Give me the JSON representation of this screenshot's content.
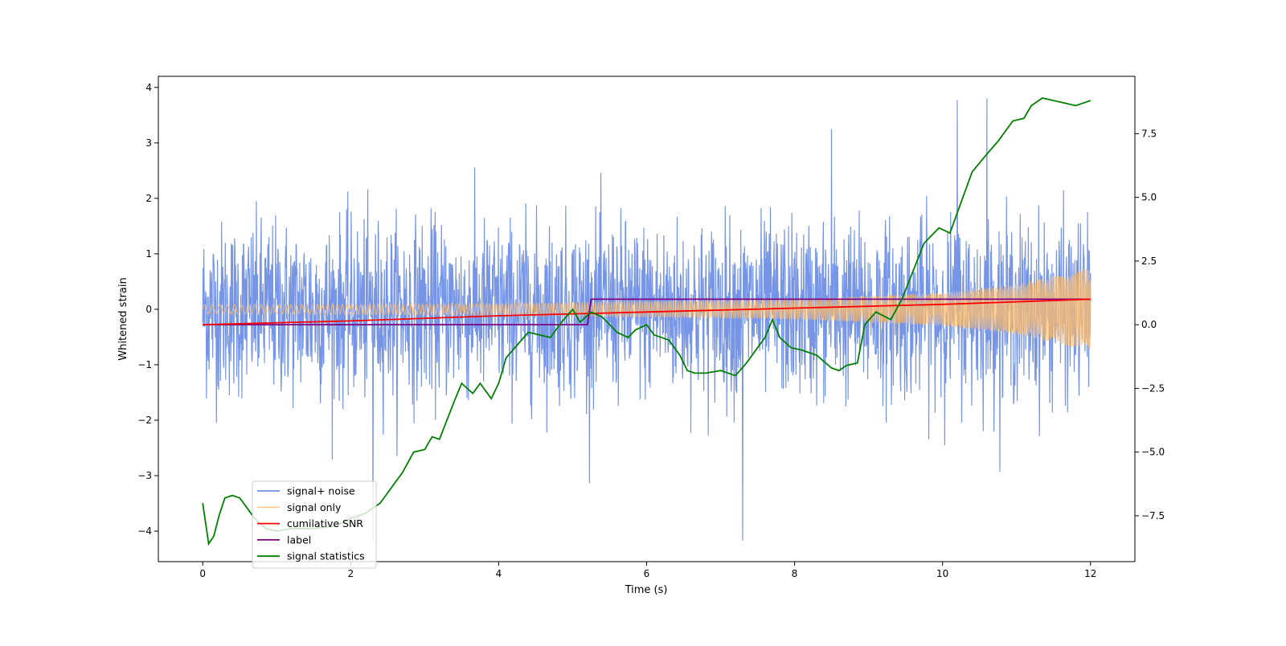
{
  "chart_data": {
    "type": "line",
    "title": "",
    "xlabel": "Time (s)",
    "ylabel": "Whitened strain",
    "y2label": "",
    "xlim": [
      -0.6,
      12.6
    ],
    "ylim": [
      -4.55,
      4.2
    ],
    "y2lim": [
      -9.3,
      9.75
    ],
    "xticks": [
      0,
      2,
      4,
      6,
      8,
      10,
      12
    ],
    "xtick_labels": [
      "0",
      "2",
      "4",
      "6",
      "8",
      "10",
      "12"
    ],
    "yticks": [
      4,
      3,
      2,
      1,
      0,
      -1,
      -2,
      -3,
      -4
    ],
    "ytick_labels": [
      "4",
      "3",
      "2",
      "1",
      "0",
      "−1",
      "−2",
      "−3",
      "−4"
    ],
    "y2ticks": [
      7.5,
      5.0,
      2.5,
      0.0,
      -2.5,
      -5.0,
      -7.5
    ],
    "y2tick_labels": [
      "7.5",
      "5.0",
      "2.5",
      "0.0",
      "−2.5",
      "−5.0",
      "−7.5"
    ],
    "grid": false,
    "legend_position": "lower-left",
    "series": [
      {
        "name": "signal+ noise",
        "axis": "left",
        "color": "#6f8fe6",
        "style": "dense noisy trace, approx. Gaussian with std ~0.8, peaks reaching +3.8 and -4.2",
        "x_range": [
          0,
          12
        ],
        "peaks": [
          [
            2.3,
            -4.2
          ],
          [
            7.3,
            -4.17
          ],
          [
            10.2,
            3.77
          ],
          [
            10.6,
            3.8
          ],
          [
            8.5,
            3.25
          ]
        ]
      },
      {
        "name": "signal only",
        "axis": "left",
        "color": "#ffbd6b",
        "style": "chirp oscillation, amplitude growing with time",
        "x_range": [
          0,
          12
        ],
        "amplitude_envelope": [
          [
            0,
            0.08
          ],
          [
            4,
            0.1
          ],
          [
            8,
            0.18
          ],
          [
            10,
            0.3
          ],
          [
            11,
            0.45
          ],
          [
            12,
            0.75
          ]
        ]
      },
      {
        "name": "cumilative SNR",
        "axis": "right",
        "color": "#ff0000",
        "points": [
          [
            0,
            0.0
          ],
          [
            2,
            0.15
          ],
          [
            4,
            0.35
          ],
          [
            6,
            0.5
          ],
          [
            8,
            0.65
          ],
          [
            10,
            0.8
          ],
          [
            11,
            0.9
          ],
          [
            12,
            1.0
          ]
        ]
      },
      {
        "name": "label",
        "axis": "right",
        "color": "#800080",
        "points": [
          [
            0,
            0
          ],
          [
            5.2,
            0
          ],
          [
            5.25,
            1
          ],
          [
            12,
            1
          ]
        ]
      },
      {
        "name": "signal statistics",
        "axis": "right",
        "color": "#008000",
        "points": [
          [
            0,
            -7.0
          ],
          [
            0.08,
            -8.6
          ],
          [
            0.15,
            -8.3
          ],
          [
            0.22,
            -7.5
          ],
          [
            0.3,
            -6.8
          ],
          [
            0.4,
            -6.7
          ],
          [
            0.5,
            -6.8
          ],
          [
            0.6,
            -7.2
          ],
          [
            0.7,
            -7.6
          ],
          [
            0.85,
            -8.0
          ],
          [
            1.0,
            -8.1
          ],
          [
            1.2,
            -8.0
          ],
          [
            1.5,
            -8.0
          ],
          [
            1.8,
            -7.9
          ],
          [
            2.0,
            -7.6
          ],
          [
            2.2,
            -7.4
          ],
          [
            2.4,
            -7.0
          ],
          [
            2.5,
            -6.6
          ],
          [
            2.6,
            -6.2
          ],
          [
            2.7,
            -5.8
          ],
          [
            2.85,
            -5.0
          ],
          [
            3.0,
            -4.9
          ],
          [
            3.1,
            -4.4
          ],
          [
            3.2,
            -4.5
          ],
          [
            3.4,
            -3.0
          ],
          [
            3.5,
            -2.3
          ],
          [
            3.65,
            -2.7
          ],
          [
            3.75,
            -2.3
          ],
          [
            3.9,
            -2.9
          ],
          [
            4.0,
            -2.3
          ],
          [
            4.1,
            -1.3
          ],
          [
            4.25,
            -0.8
          ],
          [
            4.4,
            -0.3
          ],
          [
            4.55,
            -0.4
          ],
          [
            4.7,
            -0.5
          ],
          [
            4.85,
            0.1
          ],
          [
            5.0,
            0.6
          ],
          [
            5.1,
            0.1
          ],
          [
            5.25,
            0.5
          ],
          [
            5.4,
            0.3
          ],
          [
            5.5,
            0.0
          ],
          [
            5.6,
            -0.3
          ],
          [
            5.75,
            -0.5
          ],
          [
            5.85,
            -0.2
          ],
          [
            6.0,
            0.0
          ],
          [
            6.1,
            -0.4
          ],
          [
            6.3,
            -0.6
          ],
          [
            6.45,
            -1.2
          ],
          [
            6.55,
            -1.8
          ],
          [
            6.65,
            -1.9
          ],
          [
            6.8,
            -1.9
          ],
          [
            7.0,
            -1.8
          ],
          [
            7.2,
            -2.0
          ],
          [
            7.35,
            -1.5
          ],
          [
            7.5,
            -0.9
          ],
          [
            7.6,
            -0.5
          ],
          [
            7.7,
            0.2
          ],
          [
            7.8,
            -0.5
          ],
          [
            7.95,
            -0.9
          ],
          [
            8.1,
            -1.0
          ],
          [
            8.3,
            -1.2
          ],
          [
            8.5,
            -1.7
          ],
          [
            8.6,
            -1.8
          ],
          [
            8.7,
            -1.6
          ],
          [
            8.85,
            -1.5
          ],
          [
            8.95,
            0.0
          ],
          [
            9.1,
            0.5
          ],
          [
            9.3,
            0.2
          ],
          [
            9.45,
            1.0
          ],
          [
            9.6,
            2.1
          ],
          [
            9.75,
            3.2
          ],
          [
            9.95,
            3.8
          ],
          [
            10.1,
            3.6
          ],
          [
            10.25,
            4.8
          ],
          [
            10.4,
            6.0
          ],
          [
            10.6,
            6.7
          ],
          [
            10.75,
            7.2
          ],
          [
            10.95,
            8.0
          ],
          [
            11.1,
            8.1
          ],
          [
            11.2,
            8.6
          ],
          [
            11.35,
            8.9
          ],
          [
            11.5,
            8.8
          ],
          [
            11.65,
            8.7
          ],
          [
            11.8,
            8.6
          ],
          [
            11.9,
            8.7
          ],
          [
            12.0,
            8.8
          ]
        ]
      }
    ]
  }
}
